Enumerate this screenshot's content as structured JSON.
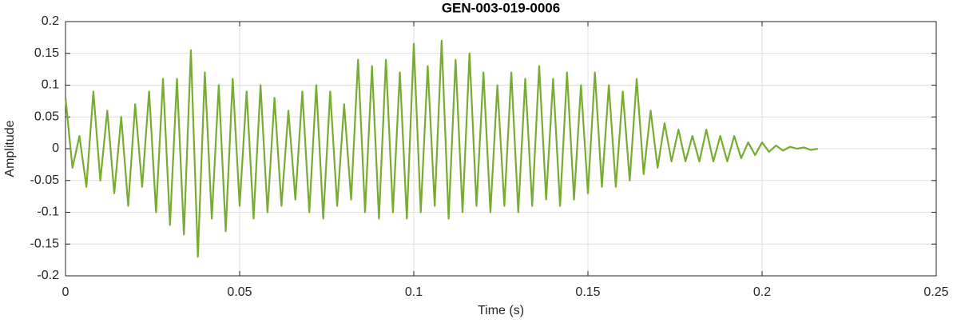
{
  "chart_data": {
    "type": "line",
    "title": "GEN-003-019-0006",
    "x_label": "Time (s)",
    "y_label": "Amplitude",
    "xlim": [
      0,
      0.25
    ],
    "xticks": [
      0,
      0.05,
      0.1,
      0.15,
      0.2,
      0.25
    ],
    "ylim": [
      -0.2,
      0.2
    ],
    "yticks": [
      -0.2,
      -0.15,
      -0.1,
      -0.05,
      0,
      0.05,
      0.1,
      0.15,
      0.2
    ],
    "grid": true,
    "x": [
      0,
      0.002,
      0.004,
      0.006,
      0.008,
      0.01,
      0.012,
      0.014,
      0.016,
      0.018,
      0.02,
      0.022,
      0.024,
      0.026,
      0.028,
      0.03,
      0.032,
      0.034,
      0.036,
      0.038,
      0.04,
      0.042,
      0.044,
      0.046,
      0.048,
      0.05,
      0.052,
      0.054,
      0.056,
      0.058,
      0.06,
      0.062,
      0.064,
      0.066,
      0.068,
      0.07,
      0.072,
      0.074,
      0.076,
      0.078,
      0.08,
      0.082,
      0.084,
      0.086,
      0.088,
      0.09,
      0.092,
      0.094,
      0.096,
      0.098,
      0.1,
      0.102,
      0.104,
      0.106,
      0.108,
      0.11,
      0.112,
      0.114,
      0.116,
      0.118,
      0.12,
      0.122,
      0.124,
      0.126,
      0.128,
      0.13,
      0.132,
      0.134,
      0.136,
      0.138,
      0.14,
      0.142,
      0.144,
      0.146,
      0.148,
      0.15,
      0.152,
      0.154,
      0.156,
      0.158,
      0.16,
      0.162,
      0.164,
      0.166,
      0.168,
      0.17,
      0.172,
      0.174,
      0.176,
      0.178,
      0.18,
      0.182,
      0.184,
      0.186,
      0.188,
      0.19,
      0.192,
      0.194,
      0.196,
      0.198,
      0.2,
      0.202,
      0.204,
      0.206,
      0.208,
      0.21,
      0.212,
      0.214,
      0.216
    ],
    "series": [
      {
        "name": "Amplitude",
        "color": "#77ac30",
        "values": [
          0.08,
          -0.03,
          0.02,
          -0.06,
          0.09,
          -0.05,
          0.06,
          -0.07,
          0.05,
          -0.09,
          0.07,
          -0.06,
          0.09,
          -0.1,
          0.11,
          -0.12,
          0.11,
          -0.135,
          0.155,
          -0.17,
          0.12,
          -0.11,
          0.1,
          -0.13,
          0.11,
          -0.09,
          0.09,
          -0.11,
          0.1,
          -0.1,
          0.08,
          -0.09,
          0.06,
          -0.08,
          0.09,
          -0.1,
          0.1,
          -0.11,
          0.09,
          -0.09,
          0.07,
          -0.08,
          0.14,
          -0.1,
          0.13,
          -0.11,
          0.14,
          -0.1,
          0.12,
          -0.11,
          0.165,
          -0.1,
          0.13,
          -0.09,
          0.17,
          -0.11,
          0.14,
          -0.1,
          0.15,
          -0.09,
          0.12,
          -0.1,
          0.1,
          -0.09,
          0.12,
          -0.1,
          0.11,
          -0.09,
          0.13,
          -0.08,
          0.11,
          -0.09,
          0.12,
          -0.08,
          0.1,
          -0.07,
          0.12,
          -0.06,
          0.1,
          -0.06,
          0.09,
          -0.05,
          0.11,
          -0.04,
          0.06,
          -0.03,
          0.04,
          -0.02,
          0.03,
          -0.02,
          0.02,
          -0.02,
          0.03,
          -0.02,
          0.02,
          -0.02,
          0.02,
          -0.015,
          0.01,
          -0.01,
          0.01,
          -0.005,
          0.005,
          -0.003,
          0.003,
          0,
          0.002,
          -0.002,
          0
        ]
      }
    ]
  }
}
